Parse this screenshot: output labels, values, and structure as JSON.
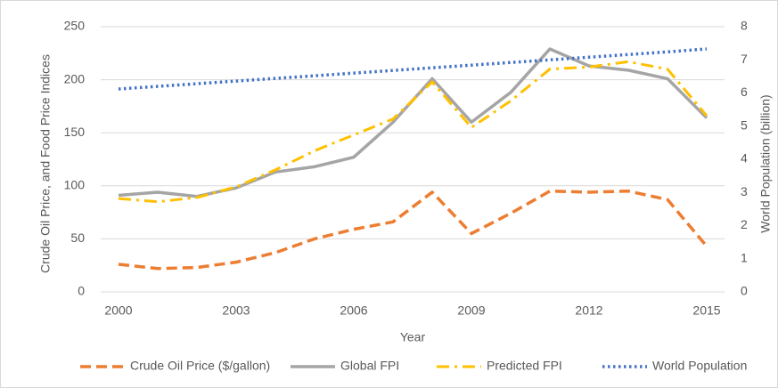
{
  "chart_data": {
    "type": "line",
    "x_label": "Year",
    "y_label": "Crude Oil Price, and Food Price Indices",
    "y2_label": "World Population (billion)",
    "x": [
      2000,
      2001,
      2002,
      2003,
      2004,
      2005,
      2006,
      2007,
      2008,
      2009,
      2010,
      2011,
      2012,
      2013,
      2014,
      2015
    ],
    "xlim": [
      2000,
      2015
    ],
    "xticks": [
      2000,
      2003,
      2006,
      2009,
      2012,
      2015
    ],
    "ylim": [
      0,
      250
    ],
    "yticks": [
      0,
      50,
      100,
      150,
      200,
      250
    ],
    "y2lim": [
      0,
      8
    ],
    "y2ticks": [
      0,
      1,
      2,
      3,
      4,
      5,
      6,
      7,
      8
    ],
    "grid": true,
    "legend": "bottom",
    "series": [
      {
        "name": "Crude Oil Price ($/gallon)",
        "color": "#ED7D31",
        "style": "dashed",
        "values": [
          26,
          22,
          23,
          28,
          37,
          50,
          59,
          66,
          94,
          55,
          74,
          95,
          94,
          95,
          87,
          43
        ]
      },
      {
        "name": "Global FPI",
        "color": "#A5A5A5",
        "style": "solid",
        "values": [
          91,
          94,
          90,
          98,
          113,
          118,
          127,
          160,
          201,
          160,
          188,
          229,
          213,
          209,
          201,
          164
        ]
      },
      {
        "name": "Predicted FPI",
        "color": "#FFC000",
        "style": "dashdot",
        "values": [
          88,
          85,
          89,
          99,
          115,
          133,
          148,
          163,
          198,
          155,
          180,
          210,
          212,
          217,
          210,
          166
        ]
      },
      {
        "name": "World Population",
        "color": "#4472C4",
        "style": "dotted",
        "axis": "y2",
        "values": [
          6.12,
          6.2,
          6.28,
          6.36,
          6.44,
          6.52,
          6.6,
          6.68,
          6.76,
          6.84,
          6.92,
          7.0,
          7.08,
          7.16,
          7.24,
          7.33
        ]
      }
    ]
  }
}
